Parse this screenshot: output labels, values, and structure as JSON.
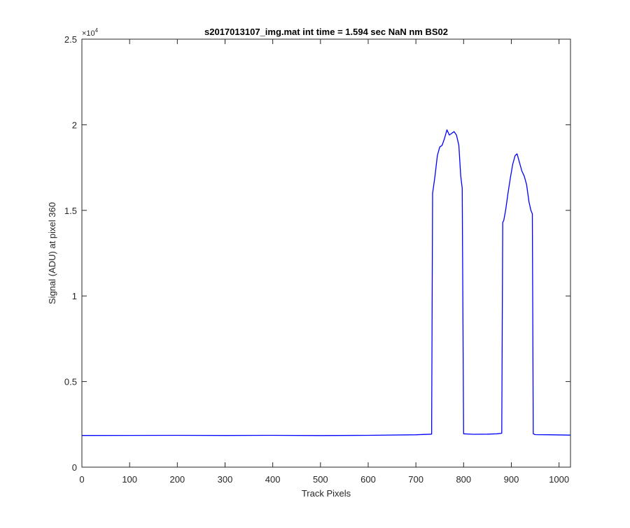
{
  "chart_data": {
    "type": "line",
    "title": "s2017013107_img.mat int time = 1.594 sec  NaN nm BS02",
    "xlabel": "Track Pixels",
    "ylabel": "Signal (ADU) at pixel 360",
    "xlim": [
      0,
      1024
    ],
    "ylim": [
      0,
      25000
    ],
    "x_ticks": [
      0,
      100,
      200,
      300,
      400,
      500,
      600,
      700,
      800,
      900,
      1000
    ],
    "x_tick_labels": [
      "0",
      "100",
      "200",
      "300",
      "400",
      "500",
      "600",
      "700",
      "800",
      "900",
      "1000"
    ],
    "y_ticks": [
      0,
      5000,
      10000,
      15000,
      20000,
      25000
    ],
    "y_tick_labels": [
      "0",
      "0.5",
      "1",
      "1.5",
      "2",
      "2.5"
    ],
    "y_exponent": {
      "base": "×10",
      "power": "4"
    },
    "grid": false,
    "series": [
      {
        "color": "#0000ff",
        "x": [
          0,
          100,
          200,
          300,
          400,
          500,
          600,
          700,
          733,
          735,
          737,
          740,
          745,
          750,
          755,
          760,
          765,
          770,
          775,
          780,
          785,
          790,
          794,
          797,
          800,
          820,
          850,
          870,
          880,
          882,
          884,
          888,
          893,
          898,
          903,
          908,
          912,
          917,
          922,
          927,
          932,
          937,
          941,
          944,
          946,
          950,
          980,
          1024
        ],
        "values": [
          1850,
          1855,
          1860,
          1850,
          1860,
          1845,
          1860,
          1890,
          1930,
          16000,
          16400,
          17000,
          18200,
          18700,
          18800,
          19200,
          19700,
          19400,
          19500,
          19600,
          19400,
          18800,
          17000,
          16300,
          1950,
          1920,
          1930,
          1950,
          1980,
          14300,
          14400,
          15000,
          16000,
          16900,
          17700,
          18200,
          18300,
          17800,
          17300,
          17000,
          16500,
          15500,
          15000,
          14800,
          1950,
          1900,
          1890,
          1870
        ]
      }
    ]
  }
}
